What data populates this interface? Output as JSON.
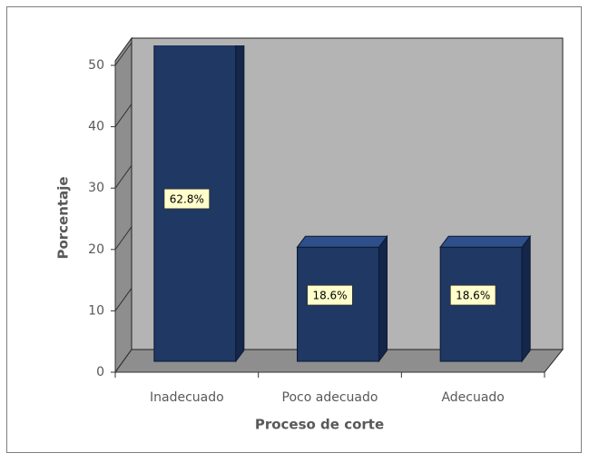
{
  "chart_data": {
    "type": "bar3d",
    "categories": [
      "Inadecuado",
      "Poco adecuado",
      "Adecuado"
    ],
    "values": [
      62.8,
      18.6,
      18.6
    ],
    "value_labels": [
      "62.8%",
      "18.6%",
      "18.6%"
    ],
    "color": "#1f3864",
    "x_label": "Proceso de corte",
    "y_label": "Porcentaje",
    "ylim": [
      0,
      50
    ],
    "yticks": [
      0,
      10,
      20,
      30,
      40,
      50
    ]
  }
}
